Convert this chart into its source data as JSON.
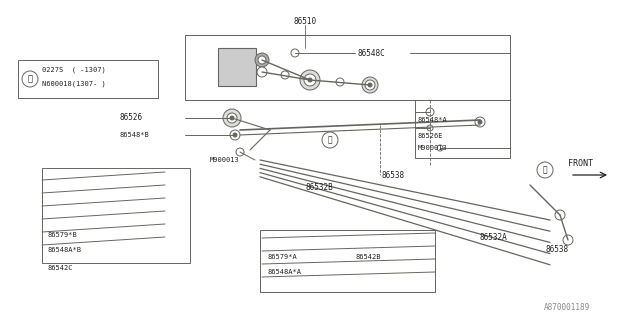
{
  "bg_color": "#f0f0eb",
  "line_color": "#666660",
  "text_color": "#222222",
  "watermark": "A870001189",
  "callout_lines": [
    "0227S  ( -1307)",
    "N600018(1307- )"
  ]
}
